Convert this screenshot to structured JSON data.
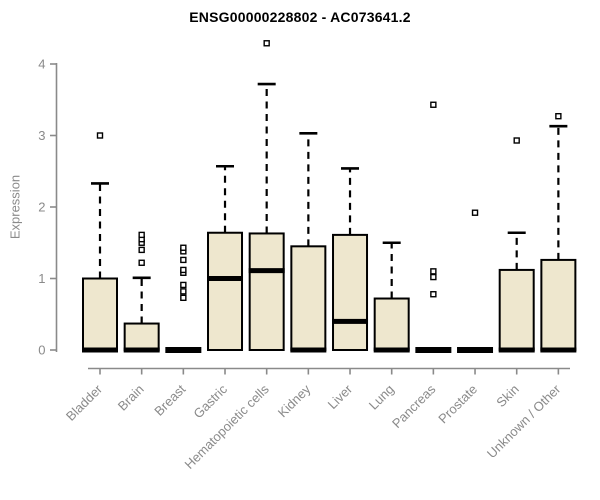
{
  "chart_data": {
    "type": "boxplot",
    "title": "ENSG00000228802 - AC073641.2",
    "ylabel": "Expression",
    "xlabel": "",
    "ylim": [
      0,
      4
    ],
    "yticks": [
      0,
      1,
      2,
      3,
      4
    ],
    "grid": false,
    "legend": null,
    "categories": [
      "Bladder",
      "Brain",
      "Breast",
      "Gastric",
      "Hematopoietic cells",
      "Kidney",
      "Liver",
      "Lung",
      "Pancreas",
      "Prostate",
      "Skin",
      "Unknown / Other"
    ],
    "boxes": [
      {
        "category": "Bladder",
        "q1": 0,
        "median": 0,
        "q3": 1.0,
        "whisker_low": 0,
        "whisker_high": 2.33,
        "outliers": [
          3.0
        ]
      },
      {
        "category": "Brain",
        "q1": 0,
        "median": 0,
        "q3": 0.37,
        "whisker_low": 0,
        "whisker_high": 1.01,
        "outliers": [
          1.22,
          1.4,
          1.5,
          1.55,
          1.61
        ]
      },
      {
        "category": "Breast",
        "q1": 0,
        "median": 0,
        "q3": 0,
        "whisker_low": 0,
        "whisker_high": 0,
        "outliers": [
          0.73,
          0.82,
          0.91,
          1.08,
          1.12,
          1.26,
          1.38,
          1.43
        ]
      },
      {
        "category": "Gastric",
        "q1": 0,
        "median": 1.0,
        "q3": 1.64,
        "whisker_low": 0,
        "whisker_high": 2.57,
        "outliers": []
      },
      {
        "category": "Hematopoietic cells",
        "q1": 0,
        "median": 1.11,
        "q3": 1.63,
        "whisker_low": 0,
        "whisker_high": 3.72,
        "outliers": [
          4.29
        ]
      },
      {
        "category": "Kidney",
        "q1": 0,
        "median": 0,
        "q3": 1.45,
        "whisker_low": 0,
        "whisker_high": 3.03,
        "outliers": []
      },
      {
        "category": "Liver",
        "q1": 0,
        "median": 0.4,
        "q3": 1.61,
        "whisker_low": 0,
        "whisker_high": 2.54,
        "outliers": []
      },
      {
        "category": "Lung",
        "q1": 0,
        "median": 0,
        "q3": 0.72,
        "whisker_low": 0,
        "whisker_high": 1.5,
        "outliers": []
      },
      {
        "category": "Pancreas",
        "q1": 0,
        "median": 0,
        "q3": 0,
        "whisker_low": 0,
        "whisker_high": 0,
        "outliers": [
          0.78,
          1.02,
          1.1,
          3.43
        ]
      },
      {
        "category": "Prostate",
        "q1": 0,
        "median": 0,
        "q3": 0,
        "whisker_low": 0,
        "whisker_high": 0,
        "outliers": [
          1.92
        ]
      },
      {
        "category": "Skin",
        "q1": 0,
        "median": 0,
        "q3": 1.12,
        "whisker_low": 0,
        "whisker_high": 1.64,
        "outliers": [
          2.93
        ]
      },
      {
        "category": "Unknown / Other",
        "q1": 0,
        "median": 0,
        "q3": 1.26,
        "whisker_low": 0,
        "whisker_high": 3.13,
        "outliers": [
          3.27
        ]
      }
    ],
    "colors": {
      "background": "#ffffff",
      "box_fill": "#EEE7CE",
      "box_border": "#000000",
      "median": "#000000",
      "whisker": "#000000",
      "outlier_stroke": "#000000",
      "outlier_fill": "#ffffff",
      "axis": "#8a8a8a",
      "tick_label": "#8a8a8a",
      "title": "#000000"
    }
  }
}
